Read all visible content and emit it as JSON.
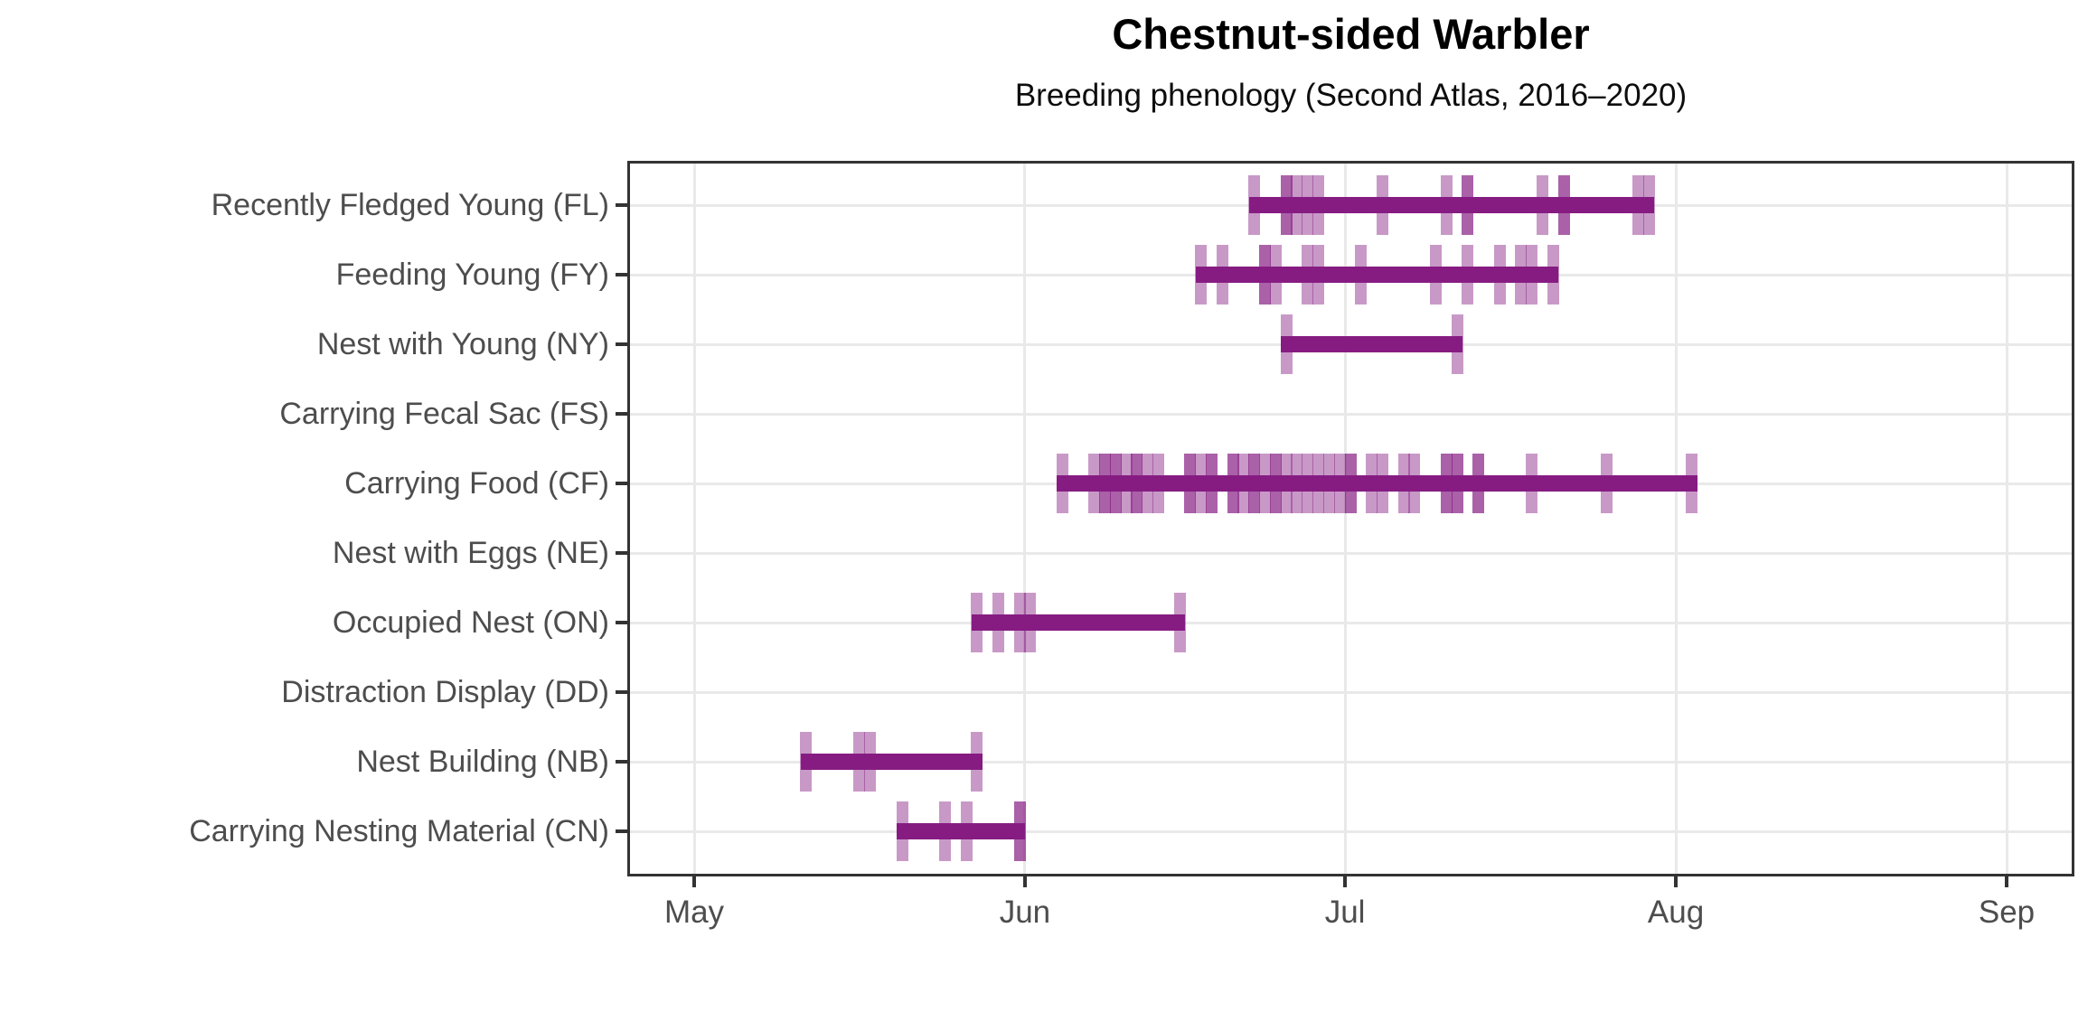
{
  "chart_data": {
    "type": "bar",
    "variant": "phenology-range-with-observation-rug",
    "title": "Chestnut-sided Warbler",
    "subtitle": "Breeding phenology (Second Atlas, 2016–2020)",
    "x_axis": {
      "ticks": [
        "May",
        "Jun",
        "Jul",
        "Aug",
        "Sep"
      ]
    },
    "y_axis": {
      "label_order": "top-to-bottom"
    },
    "grid": "major-only",
    "legend": "none",
    "colors": {
      "bar": "#861C82",
      "tick": "rgba(134,28,130,0.45)",
      "grid": "#E9E9E9",
      "axis": "#333333",
      "text": "#4D4D4D"
    },
    "categories": [
      {
        "label": "Recently Fledged Young (FL)",
        "code": "FL",
        "range": {
          "start": "Jun 22",
          "end": "Jul 29"
        },
        "observations": [
          "Jun 22",
          "Jun 25",
          "Jun 25",
          "Jun 26",
          "Jun 27",
          "Jun 28",
          "Jul 4",
          "Jul 10",
          "Jul 12",
          "Jul 12",
          "Jul 19",
          "Jul 21",
          "Jul 21",
          "Jul 28",
          "Jul 29"
        ]
      },
      {
        "label": "Feeding Young (FY)",
        "code": "FY",
        "range": {
          "start": "Jun 17",
          "end": "Jul 20"
        },
        "observations": [
          "Jun 17",
          "Jun 19",
          "Jun 23",
          "Jun 23",
          "Jun 24",
          "Jun 27",
          "Jun 28",
          "Jul 2",
          "Jul 9",
          "Jul 12",
          "Jul 15",
          "Jul 17",
          "Jul 18",
          "Jul 20"
        ]
      },
      {
        "label": "Nest with Young (NY)",
        "code": "NY",
        "range": {
          "start": "Jun 25",
          "end": "Jul 11"
        },
        "observations": [
          "Jun 25",
          "Jul 11"
        ]
      },
      {
        "label": "Carrying Fecal Sac (FS)",
        "code": "FS",
        "range": null,
        "observations": []
      },
      {
        "label": "Carrying Food (CF)",
        "code": "CF",
        "range": {
          "start": "Jun 4",
          "end": "Aug 2"
        },
        "observations": [
          "Jun 4",
          "Jun 7",
          "Jun 8",
          "Jun 8",
          "Jun 9",
          "Jun 9",
          "Jun 10",
          "Jun 11",
          "Jun 11",
          "Jun 12",
          "Jun 13",
          "Jun 16",
          "Jun 16",
          "Jun 17",
          "Jun 18",
          "Jun 18",
          "Jun 20",
          "Jun 20",
          "Jun 21",
          "Jun 22",
          "Jun 22",
          "Jun 23",
          "Jun 24",
          "Jun 24",
          "Jun 25",
          "Jun 26",
          "Jun 27",
          "Jun 28",
          "Jun 29",
          "Jun 30",
          "Jul 1",
          "Jul 1",
          "Jul 3",
          "Jul 4",
          "Jul 6",
          "Jul 7",
          "Jul 10",
          "Jul 10",
          "Jul 11",
          "Jul 11",
          "Jul 13",
          "Jul 13",
          "Jul 18",
          "Jul 25",
          "Aug 2"
        ]
      },
      {
        "label": "Nest with Eggs (NE)",
        "code": "NE",
        "range": null,
        "observations": []
      },
      {
        "label": "Occupied Nest (ON)",
        "code": "ON",
        "range": {
          "start": "May 27",
          "end": "Jun 15"
        },
        "observations": [
          "May 27",
          "May 29",
          "May 31",
          "Jun 1",
          "Jun 15"
        ]
      },
      {
        "label": "Distraction Display (DD)",
        "code": "DD",
        "range": null,
        "observations": []
      },
      {
        "label": "Nest Building (NB)",
        "code": "NB",
        "range": {
          "start": "May 11",
          "end": "May 27"
        },
        "observations": [
          "May 11",
          "May 16",
          "May 17",
          "May 27"
        ]
      },
      {
        "label": "Carrying Nesting Material (CN)",
        "code": "CN",
        "range": {
          "start": "May 20",
          "end": "May 31"
        },
        "observations": [
          "May 20",
          "May 24",
          "May 26",
          "May 31",
          "May 31"
        ]
      }
    ]
  }
}
